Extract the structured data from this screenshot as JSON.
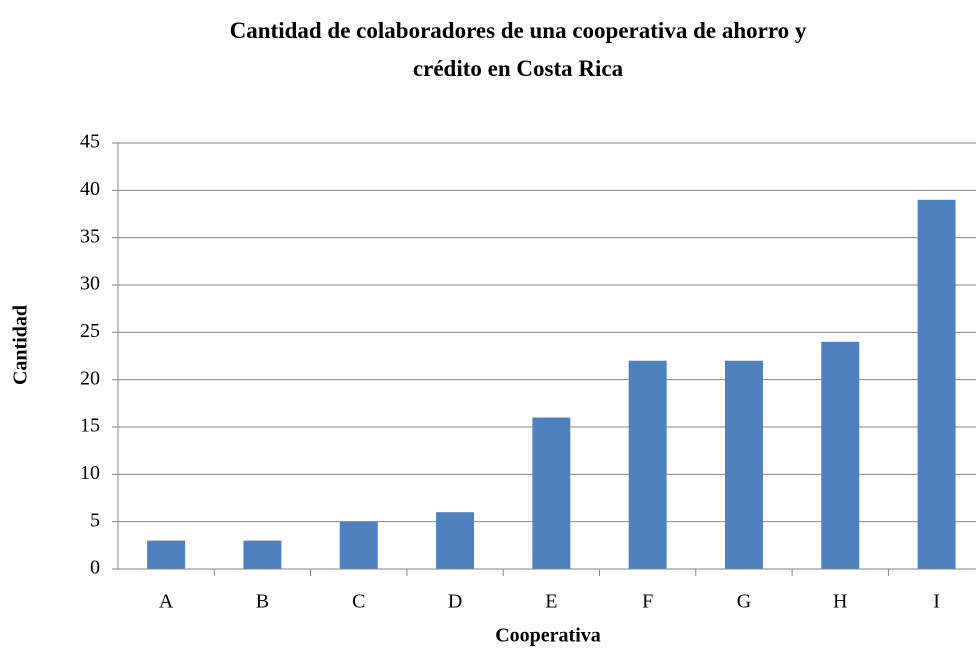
{
  "chart_data": {
    "type": "bar",
    "title": "Cantidad de colaboradores de una cooperativa de ahorro y crédito en Costa Rica",
    "x_label": "Cooperativa",
    "y_label": "Cantidad",
    "categories": [
      "A",
      "B",
      "C",
      "D",
      "E",
      "F",
      "G",
      "H",
      "I"
    ],
    "values": [
      3,
      3,
      5,
      6,
      16,
      22,
      22,
      24,
      39
    ],
    "color": "#4f81bd",
    "ylim": [
      0,
      45
    ],
    "yticks": [
      0,
      5,
      10,
      15,
      20,
      25,
      30,
      35,
      40,
      45
    ],
    "grid": true
  }
}
